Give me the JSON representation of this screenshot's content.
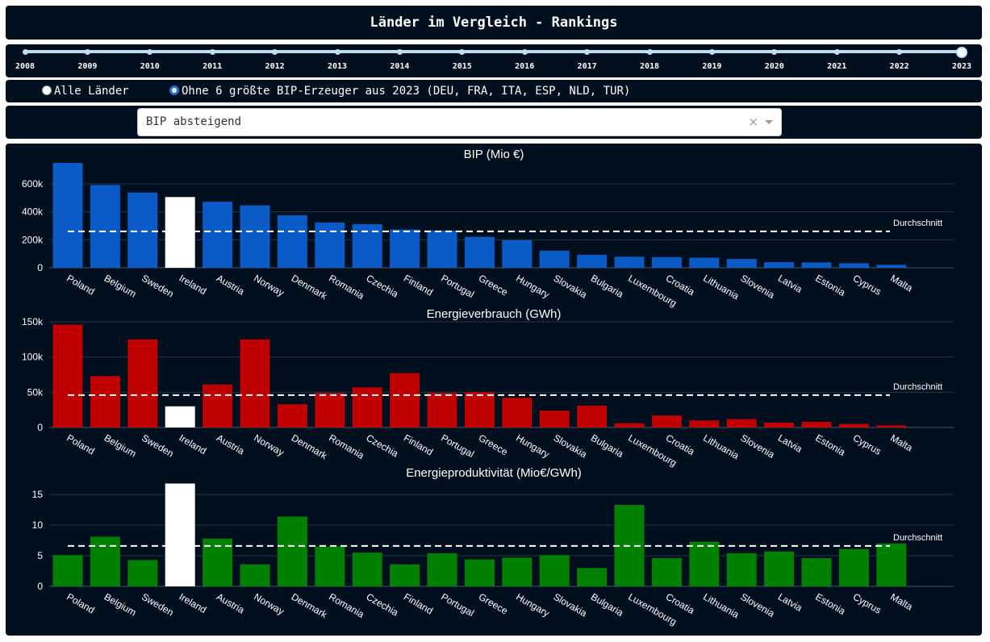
{
  "page": {
    "title": "Länder im Vergleich - Rankings"
  },
  "slider": {
    "years": [
      "2008",
      "2009",
      "2010",
      "2011",
      "2012",
      "2013",
      "2014",
      "2015",
      "2016",
      "2017",
      "2018",
      "2019",
      "2020",
      "2021",
      "2022",
      "2023"
    ],
    "selected": "2023"
  },
  "radio": {
    "options": [
      {
        "label": "Alle Länder",
        "checked": false
      },
      {
        "label": "Ohne 6 größte BIP-Erzeuger aus 2023 (DEU, FRA, ITA, ESP, NLD, TUR)",
        "checked": true
      }
    ]
  },
  "dropdown": {
    "value": "BIP absteigend",
    "clear_icon": "close-icon",
    "arrow_icon": "chevron-down-icon"
  },
  "colors": {
    "background": "#000f1e",
    "bip": "#0a5ac8",
    "energy": "#c00000",
    "productivity": "#008000",
    "highlight": "#ffffff"
  },
  "chart_data": [
    {
      "type": "bar",
      "title": "BIP (Mio €)",
      "categories": [
        "Poland",
        "Belgium",
        "Sweden",
        "Ireland",
        "Austria",
        "Norway",
        "Denmark",
        "Romania",
        "Czechia",
        "Finland",
        "Portugal",
        "Greece",
        "Hungary",
        "Slovakia",
        "Bulgaria",
        "Luxembourg",
        "Croatia",
        "Lithuania",
        "Slovenia",
        "Latvia",
        "Estonia",
        "Cyprus",
        "Malta"
      ],
      "values": [
        750000,
        592000,
        538000,
        506000,
        472000,
        446000,
        376000,
        324000,
        312000,
        274000,
        266000,
        221000,
        197000,
        122000,
        93000,
        79000,
        76000,
        72000,
        63000,
        40000,
        38000,
        32000,
        21000
      ],
      "highlight": "Ireland",
      "average": 260000,
      "average_label": "Durchschnitt",
      "yticks": [
        "0",
        "200k",
        "400k",
        "600k"
      ],
      "ylim": [
        0,
        750000
      ]
    },
    {
      "type": "bar",
      "title": "Energieverbrauch (GWh)",
      "categories": [
        "Poland",
        "Belgium",
        "Sweden",
        "Ireland",
        "Austria",
        "Norway",
        "Denmark",
        "Romania",
        "Czechia",
        "Finland",
        "Portugal",
        "Greece",
        "Hungary",
        "Slovakia",
        "Bulgaria",
        "Luxembourg",
        "Croatia",
        "Lithuania",
        "Slovenia",
        "Latvia",
        "Estonia",
        "Cyprus",
        "Malta"
      ],
      "values": [
        146000,
        73000,
        125000,
        30000,
        61000,
        125000,
        33000,
        49000,
        57000,
        77000,
        49000,
        50000,
        42000,
        24000,
        31000,
        6000,
        17000,
        10000,
        12000,
        7000,
        8000,
        5000,
        3000
      ],
      "highlight": "Ireland",
      "average": 46000,
      "average_label": "Durchschnitt",
      "yticks": [
        "0",
        "50k",
        "100k",
        "150k"
      ],
      "ylim": [
        0,
        150000
      ]
    },
    {
      "type": "bar",
      "title": "Energieproduktivität (Mio€/GWh)",
      "categories": [
        "Poland",
        "Belgium",
        "Sweden",
        "Ireland",
        "Austria",
        "Norway",
        "Denmark",
        "Romania",
        "Czechia",
        "Finland",
        "Portugal",
        "Greece",
        "Hungary",
        "Slovakia",
        "Bulgaria",
        "Luxembourg",
        "Croatia",
        "Lithuania",
        "Slovenia",
        "Latvia",
        "Estonia",
        "Cyprus",
        "Malta"
      ],
      "values": [
        5.1,
        8.1,
        4.3,
        16.8,
        7.8,
        3.6,
        11.4,
        6.5,
        5.5,
        3.6,
        5.4,
        4.4,
        4.7,
        5.1,
        3.0,
        13.3,
        4.6,
        7.3,
        5.4,
        5.7,
        4.6,
        6.1,
        7.0
      ],
      "highlight": "Ireland",
      "average": 6.6,
      "average_label": "Durchschnitt",
      "yticks": [
        "0",
        "5",
        "10",
        "15"
      ],
      "ylim": [
        0,
        17
      ]
    }
  ]
}
